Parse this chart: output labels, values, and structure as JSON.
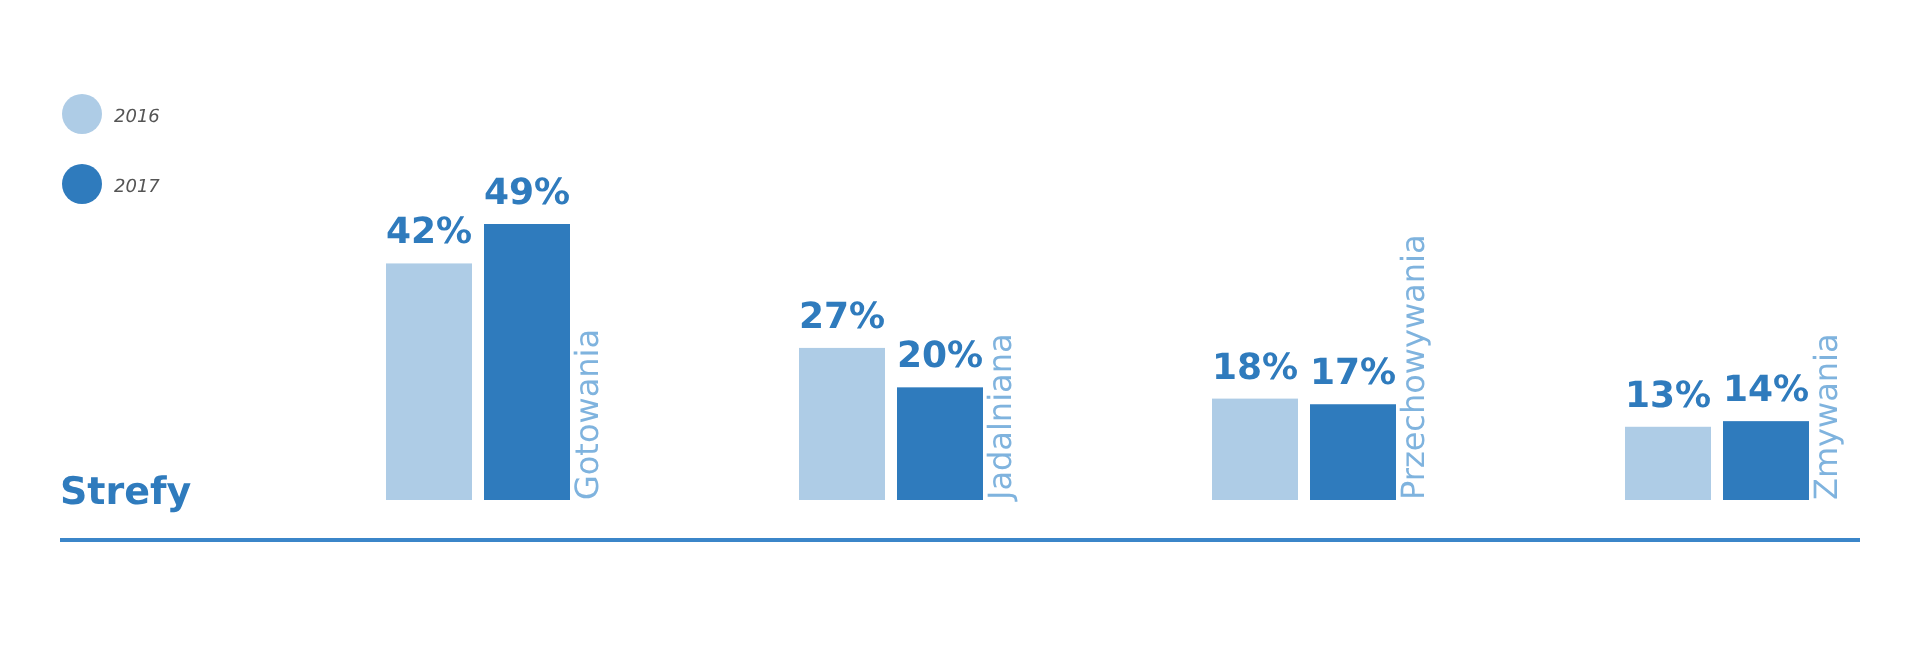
{
  "chart_data": {
    "type": "bar",
    "xlabel": "Strefy",
    "categories": [
      "Gotowania",
      "Jadalniana",
      "Przechowywania",
      "Zmywania"
    ],
    "series": [
      {
        "name": "2016",
        "color": "#aecce6",
        "values": [
          42,
          27,
          18,
          13
        ],
        "value_labels": [
          "42%",
          "27%",
          "18%",
          "13%"
        ]
      },
      {
        "name": "2017",
        "color": "#2f7bbd",
        "values": [
          49,
          20,
          17,
          14
        ],
        "value_labels": [
          "49%",
          "20%",
          "17%",
          "14%"
        ]
      }
    ],
    "legend": "top left"
  }
}
